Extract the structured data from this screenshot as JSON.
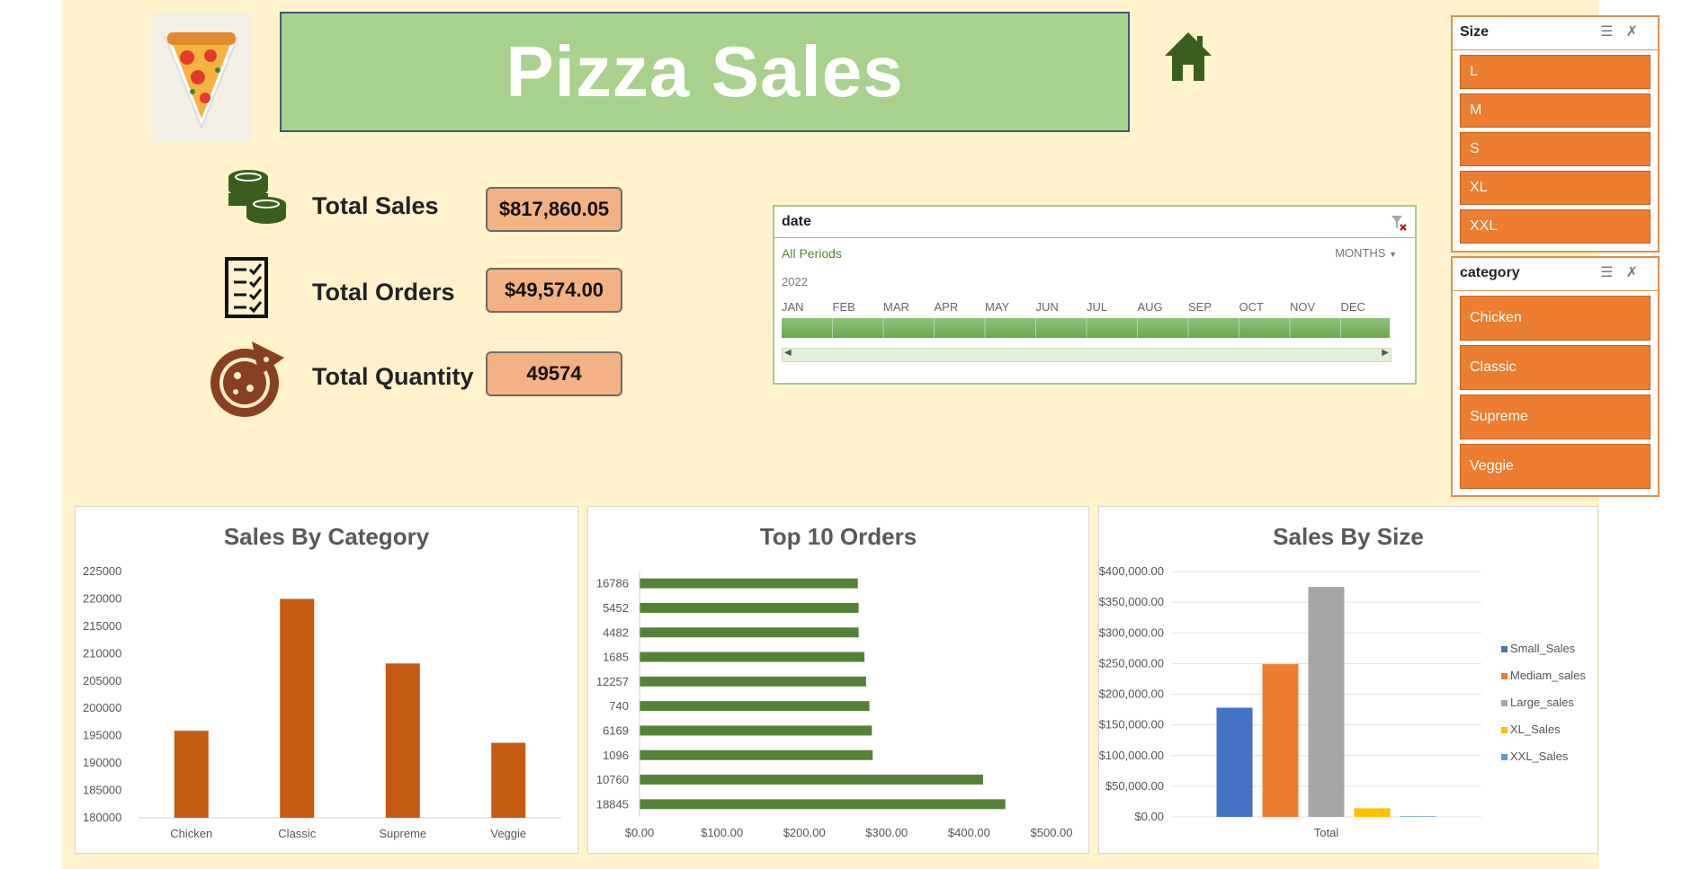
{
  "title": "Pizza Sales",
  "kpis": [
    {
      "label": "Total Sales",
      "value": "$817,860.05"
    },
    {
      "label": "Total Orders",
      "value": "$49,574.00"
    },
    {
      "label": "Total Quantity",
      "value": "49574"
    }
  ],
  "timeline": {
    "field": "date",
    "periods_label": "All Periods",
    "unit_label": "MONTHS",
    "year": "2022",
    "months": [
      "JAN",
      "FEB",
      "MAR",
      "APR",
      "MAY",
      "JUN",
      "JUL",
      "AUG",
      "SEP",
      "OCT",
      "NOV",
      "DEC"
    ]
  },
  "size_slicer": {
    "title": "Size",
    "items": [
      "L",
      "M",
      "S",
      "XL",
      "XXL"
    ]
  },
  "category_slicer": {
    "title": "category",
    "items": [
      "Chicken",
      "Classic",
      "Supreme",
      "Veggie"
    ]
  },
  "colors": {
    "bar_orange": "#c55a11",
    "bar_green": "#548235",
    "small": "#4472c4",
    "medium": "#ed7d31",
    "large": "#a5a5a5",
    "xl": "#ffc000",
    "xxl": "#5b9bd5"
  },
  "chart_data": [
    {
      "type": "bar",
      "title": "Sales By Category",
      "categories": [
        "Chicken",
        "Classic",
        "Supreme",
        "Veggie"
      ],
      "values": [
        195900,
        220000,
        208200,
        193700
      ],
      "ylim": [
        180000,
        225000
      ],
      "yticks": [
        "180000",
        "185000",
        "190000",
        "195000",
        "200000",
        "205000",
        "210000",
        "215000",
        "220000",
        "225000"
      ]
    },
    {
      "type": "bar",
      "orientation": "horizontal",
      "title": "Top 10 Orders",
      "categories": [
        "16786",
        "5452",
        "4482",
        "1685",
        "12257",
        "740",
        "6169",
        "1096",
        "10760",
        "18845"
      ],
      "values": [
        265,
        266,
        266,
        273,
        275,
        279,
        282,
        283,
        417,
        444
      ],
      "xlim": [
        0,
        500
      ],
      "xticks": [
        "$0.00",
        "$100.00",
        "$200.00",
        "$300.00",
        "$400.00",
        "$500.00"
      ]
    },
    {
      "type": "bar",
      "title": "Sales By Size",
      "categories": [
        "Total"
      ],
      "series": [
        {
          "name": "Small_Sales",
          "values": [
            178000
          ]
        },
        {
          "name": "Mediam_sales",
          "values": [
            249000
          ]
        },
        {
          "name": "Large_sales",
          "values": [
            375000
          ]
        },
        {
          "name": "XL_Sales",
          "values": [
            14000
          ]
        },
        {
          "name": "XXL_Sales",
          "values": [
            1000
          ]
        }
      ],
      "ylim": [
        0,
        400000
      ],
      "yticks": [
        "$0.00",
        "$50,000.00",
        "$100,000.00",
        "$150,000.00",
        "$200,000.00",
        "$250,000.00",
        "$300,000.00",
        "$350,000.00",
        "$400,000.00"
      ]
    }
  ]
}
